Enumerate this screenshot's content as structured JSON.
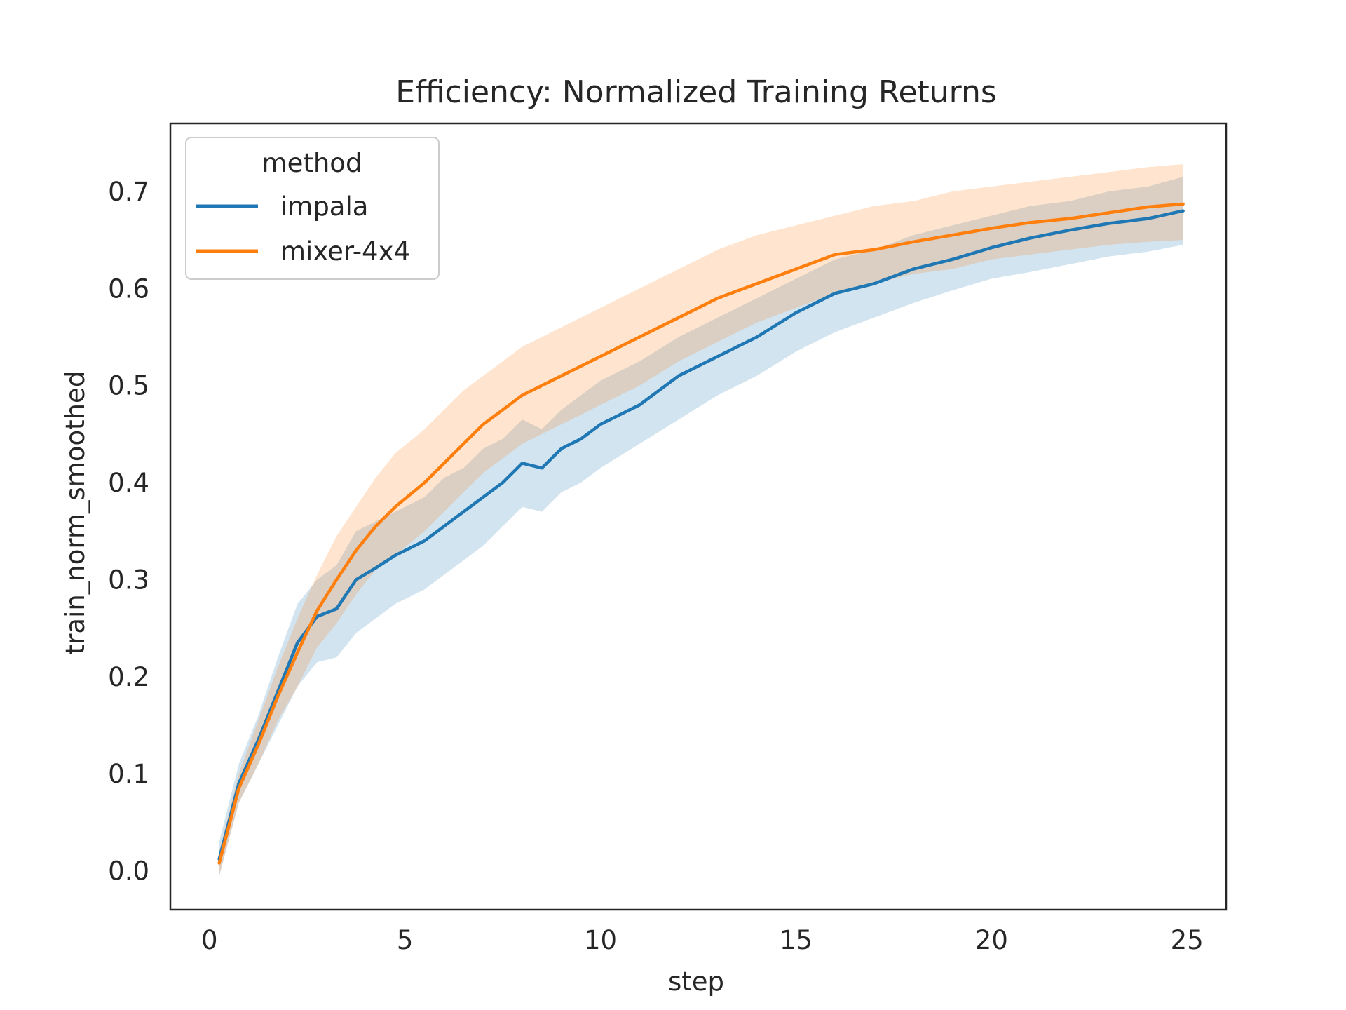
{
  "chart_data": {
    "type": "line",
    "title": "Efficiency: Normalized Training Returns",
    "xlabel": "step",
    "ylabel": "train_norm_smoothed",
    "xlim": [
      -1,
      26
    ],
    "ylim": [
      -0.04,
      0.77
    ],
    "xticks": [
      0,
      5,
      10,
      15,
      20,
      25
    ],
    "yticks": [
      0.0,
      0.1,
      0.2,
      0.3,
      0.4,
      0.5,
      0.6,
      0.7
    ],
    "grid": false,
    "legend": {
      "title": "method",
      "position": "top-left"
    },
    "x": [
      0.25,
      0.75,
      1.25,
      1.75,
      2.25,
      2.75,
      3.25,
      3.75,
      4.25,
      4.75,
      5.5,
      6.0,
      6.5,
      7.0,
      7.5,
      8.0,
      8.5,
      9.0,
      9.5,
      10.0,
      11.0,
      12.0,
      13.0,
      14.0,
      15.0,
      16.0,
      17.0,
      18.0,
      19.0,
      20.0,
      21.0,
      22.0,
      23.0,
      24.0,
      24.9
    ],
    "series": [
      {
        "name": "impala",
        "color": "#1f77b4",
        "values": [
          0.012,
          0.09,
          0.135,
          0.185,
          0.235,
          0.262,
          0.27,
          0.3,
          0.312,
          0.325,
          0.34,
          0.355,
          0.37,
          0.385,
          0.4,
          0.42,
          0.415,
          0.435,
          0.445,
          0.46,
          0.48,
          0.51,
          0.53,
          0.55,
          0.575,
          0.595,
          0.605,
          0.62,
          0.63,
          0.642,
          0.652,
          0.66,
          0.667,
          0.672,
          0.68
        ],
        "lower": [
          -0.005,
          0.07,
          0.11,
          0.15,
          0.19,
          0.215,
          0.22,
          0.245,
          0.26,
          0.275,
          0.29,
          0.305,
          0.32,
          0.335,
          0.355,
          0.375,
          0.37,
          0.39,
          0.4,
          0.415,
          0.44,
          0.465,
          0.49,
          0.51,
          0.535,
          0.555,
          0.57,
          0.585,
          0.598,
          0.61,
          0.617,
          0.625,
          0.633,
          0.638,
          0.645
        ],
        "upper": [
          0.03,
          0.11,
          0.16,
          0.22,
          0.275,
          0.3,
          0.315,
          0.35,
          0.36,
          0.37,
          0.385,
          0.405,
          0.415,
          0.435,
          0.445,
          0.465,
          0.455,
          0.475,
          0.49,
          0.505,
          0.525,
          0.55,
          0.57,
          0.59,
          0.61,
          0.63,
          0.64,
          0.655,
          0.665,
          0.675,
          0.685,
          0.69,
          0.7,
          0.705,
          0.715
        ]
      },
      {
        "name": "mixer-4x4",
        "color": "#ff7f0e",
        "values": [
          0.008,
          0.085,
          0.13,
          0.18,
          0.225,
          0.268,
          0.3,
          0.33,
          0.355,
          0.375,
          0.4,
          0.42,
          0.44,
          0.46,
          0.475,
          0.49,
          0.5,
          0.51,
          0.52,
          0.53,
          0.55,
          0.57,
          0.59,
          0.605,
          0.62,
          0.635,
          0.64,
          0.648,
          0.655,
          0.662,
          0.668,
          0.672,
          0.678,
          0.684,
          0.687
        ],
        "lower": [
          -0.005,
          0.07,
          0.11,
          0.155,
          0.19,
          0.23,
          0.255,
          0.285,
          0.31,
          0.325,
          0.35,
          0.37,
          0.39,
          0.41,
          0.425,
          0.44,
          0.45,
          0.46,
          0.47,
          0.48,
          0.5,
          0.525,
          0.545,
          0.565,
          0.58,
          0.595,
          0.605,
          0.615,
          0.62,
          0.63,
          0.635,
          0.64,
          0.645,
          0.648,
          0.65
        ],
        "upper": [
          0.02,
          0.1,
          0.155,
          0.21,
          0.26,
          0.305,
          0.345,
          0.375,
          0.405,
          0.43,
          0.455,
          0.475,
          0.495,
          0.51,
          0.525,
          0.54,
          0.55,
          0.56,
          0.57,
          0.58,
          0.6,
          0.62,
          0.64,
          0.655,
          0.665,
          0.675,
          0.685,
          0.69,
          0.7,
          0.705,
          0.71,
          0.715,
          0.72,
          0.725,
          0.728
        ]
      }
    ]
  }
}
